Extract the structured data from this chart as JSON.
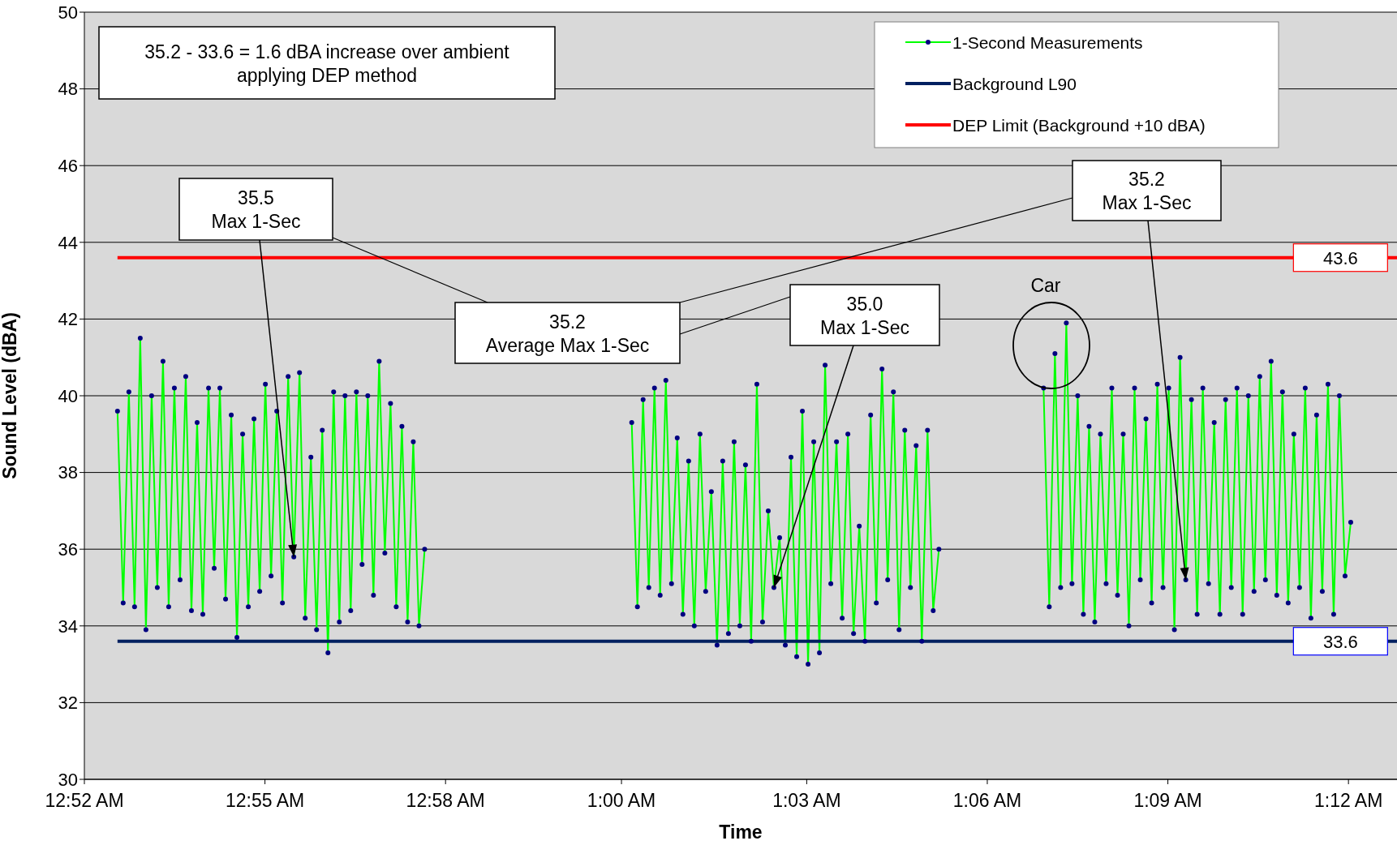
{
  "chart_data": {
    "type": "line",
    "xlabel": "Time",
    "ylabel": "Sound Level (dBA)",
    "xlim": [
      0.866667,
      1.2128
    ],
    "xticks": [
      {
        "value": 0.866667,
        "label": "12:52 AM"
      },
      {
        "value": 0.914286,
        "label": "12:55 AM"
      },
      {
        "value": 0.961905,
        "label": "12:58 AM"
      },
      {
        "value": 1.0083,
        "label": "1:00 AM"
      },
      {
        "value": 1.057143,
        "label": "1:03 AM"
      },
      {
        "value": 1.104762,
        "label": "1:06 AM"
      },
      {
        "value": 1.152381,
        "label": "1:09 AM"
      },
      {
        "value": 1.2,
        "label": "1:12 AM"
      }
    ],
    "ylim": [
      30,
      50
    ],
    "yticks": [
      30,
      32,
      34,
      36,
      38,
      40,
      42,
      44,
      46,
      48,
      50
    ],
    "grid": "y",
    "legend": "top right",
    "series": [
      {
        "name": "1-Second Measurements",
        "color": "#00ff00",
        "marker": "circle",
        "x": [
          0.8754,
          0.8769,
          0.8784,
          0.8799,
          0.8814,
          0.8829,
          0.8844,
          0.8859,
          0.8874,
          0.8889,
          0.8904,
          0.8919,
          0.8934,
          0.8949,
          0.8964,
          0.8979,
          0.8994,
          0.9009,
          0.9024,
          0.9039,
          0.9054,
          0.9069,
          0.9084,
          0.9099,
          0.9114,
          0.9129,
          0.9144,
          0.9159,
          0.9174,
          0.9189,
          0.9204,
          0.9219,
          0.9234,
          0.9249,
          0.9264,
          0.9279,
          0.9294,
          0.9309,
          0.9324,
          0.9339,
          0.9354,
          0.9369,
          0.9384,
          0.9399,
          0.9414,
          0.9429,
          0.9444,
          0.9459,
          0.9474,
          0.9489,
          0.9504,
          0.9519,
          0.9534,
          0.9549,
          0.9564,
          0.97,
          1.011,
          1.0125,
          1.014,
          1.0155,
          1.017,
          1.0185,
          1.02,
          1.0215,
          1.023,
          1.0245,
          1.026,
          1.0275,
          1.029,
          1.0305,
          1.032,
          1.0335,
          1.035,
          1.0365,
          1.038,
          1.0395,
          1.041,
          1.0425,
          1.044,
          1.0455,
          1.047,
          1.0485,
          1.05,
          1.0515,
          1.053,
          1.0545,
          1.056,
          1.0575,
          1.059,
          1.0605,
          1.062,
          1.0635,
          1.065,
          1.0665,
          1.068,
          1.0695,
          1.071,
          1.0725,
          1.074,
          1.0755,
          1.077,
          1.0785,
          1.08,
          1.0815,
          1.083,
          1.0845,
          1.086,
          1.0875,
          1.089,
          1.0905,
          1.092,
          1.1,
          1.1196,
          1.1211,
          1.1226,
          1.1241,
          1.1256,
          1.1271,
          1.1286,
          1.1301,
          1.1316,
          1.1331,
          1.1346,
          1.1361,
          1.1376,
          1.1391,
          1.1406,
          1.1421,
          1.1436,
          1.1451,
          1.1466,
          1.1481,
          1.1496,
          1.1511,
          1.1526,
          1.1541,
          1.1556,
          1.1571,
          1.1586,
          1.1601,
          1.1616,
          1.1631,
          1.1646,
          1.1661,
          1.1676,
          1.1691,
          1.1706,
          1.1721,
          1.1736,
          1.1751,
          1.1766,
          1.1781,
          1.1796,
          1.1811,
          1.1826,
          1.1841,
          1.1856,
          1.1871,
          1.1886,
          1.1901,
          1.1916,
          1.1931,
          1.1946,
          1.1961,
          1.1976,
          1.1991,
          1.2006
        ],
        "values": [
          39.6,
          34.6,
          40.1,
          34.5,
          41.5,
          33.9,
          40.0,
          35.0,
          40.9,
          34.5,
          40.2,
          35.2,
          40.5,
          34.4,
          39.3,
          34.3,
          40.2,
          35.5,
          40.2,
          34.7,
          39.5,
          33.7,
          39.0,
          34.5,
          39.4,
          34.9,
          40.3,
          35.3,
          39.6,
          34.6,
          40.5,
          35.8,
          40.6,
          34.2,
          38.4,
          33.9,
          39.1,
          33.3,
          40.1,
          34.1,
          40.0,
          34.4,
          40.1,
          35.6,
          40.0,
          34.8,
          40.9,
          35.9,
          39.8,
          34.5,
          39.2,
          34.1,
          38.8,
          34.0,
          36.0,
          null,
          39.3,
          34.5,
          39.9,
          35.0,
          40.2,
          34.8,
          40.4,
          35.1,
          38.9,
          34.3,
          38.3,
          34.0,
          39.0,
          34.9,
          37.5,
          33.5,
          38.3,
          33.8,
          38.8,
          34.0,
          38.2,
          33.6,
          40.3,
          34.1,
          37.0,
          35.0,
          36.3,
          33.5,
          38.4,
          33.2,
          39.6,
          33.0,
          38.8,
          33.3,
          40.8,
          35.1,
          38.8,
          34.2,
          39.0,
          33.8,
          36.6,
          33.6,
          39.5,
          34.6,
          40.7,
          35.2,
          40.1,
          33.9,
          39.1,
          35.0,
          38.7,
          33.6,
          39.1,
          34.4,
          36.0,
          null,
          40.2,
          34.5,
          41.1,
          35.0,
          41.9,
          35.1,
          40.0,
          34.3,
          39.2,
          34.1,
          39.0,
          35.1,
          40.2,
          34.8,
          39.0,
          34.0,
          40.2,
          35.2,
          39.4,
          34.6,
          40.3,
          35.0,
          40.2,
          33.9,
          41.0,
          35.2,
          39.9,
          34.3,
          40.2,
          35.1,
          39.3,
          34.3,
          39.9,
          35.0,
          40.2,
          34.3,
          40.0,
          34.9,
          40.5,
          35.2,
          40.9,
          34.8,
          40.1,
          34.6,
          39.0,
          35.0,
          40.2,
          34.2,
          39.5,
          34.9,
          40.3,
          34.3,
          40.0,
          35.3,
          36.7
        ]
      },
      {
        "name": "Background L90",
        "color": "#002060",
        "marker": "none",
        "x": [
          0.8754,
          1.2128
        ],
        "values": [
          33.6,
          33.6
        ]
      },
      {
        "name": "DEP Limit (Background +10 dBA)",
        "color": "#ff0000",
        "marker": "none",
        "x": [
          0.8754,
          1.2128
        ],
        "values": [
          43.6,
          43.6
        ]
      }
    ],
    "annotations": [
      "35.2 - 33.6 = 1.6 dBA increase over ambient\napplying DEP method",
      {
        "text": "35.5\nMax 1-Sec",
        "x": 0.9219,
        "y": 35.8
      },
      "35.2\nAverage Max 1-Sec",
      {
        "text": "35.0\nMax 1-Sec",
        "x": 1.0485,
        "y": 35.0
      },
      {
        "text": "35.2\nMax 1-Sec",
        "x": 1.1571,
        "y": 35.2
      },
      "Car",
      {
        "text": "43.6",
        "x": 1.1979,
        "y": 43.6
      },
      {
        "text": "33.6",
        "x": 1.1979,
        "y": 33.6
      }
    ]
  }
}
